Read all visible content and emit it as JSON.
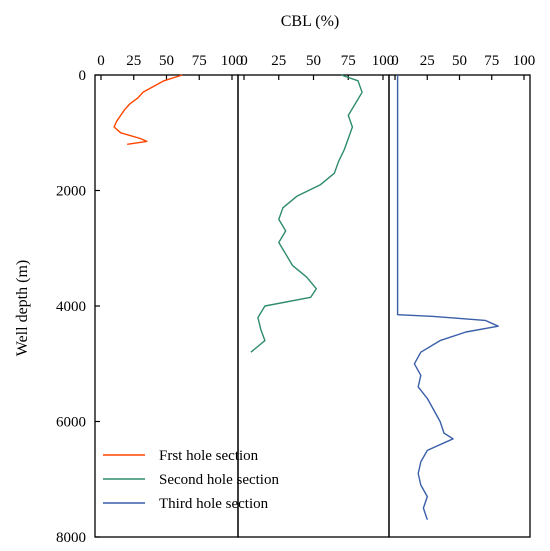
{
  "chart_data": {
    "type": "line",
    "title": "",
    "xlabel": "CBL (%)",
    "ylabel": "Well depth (m)",
    "x_ticks": [
      "0",
      "25",
      "50",
      "75",
      "100"
    ],
    "y_ticks": [
      "0",
      "2000",
      "4000",
      "6000",
      "8000"
    ],
    "xlim": [
      0,
      100
    ],
    "ylim": [
      8000,
      0
    ],
    "grid": false,
    "legend_position": "bottom-left",
    "panels": 3,
    "series": [
      {
        "name": "Frst hole section",
        "color": "#ff4500",
        "panel": 0,
        "points": [
          [
            62,
            0
          ],
          [
            48,
            100
          ],
          [
            40,
            200
          ],
          [
            32,
            300
          ],
          [
            28,
            400
          ],
          [
            22,
            500
          ],
          [
            18,
            600
          ],
          [
            15,
            700
          ],
          [
            12,
            800
          ],
          [
            10,
            900
          ],
          [
            15,
            1000
          ],
          [
            30,
            1100
          ],
          [
            35,
            1150
          ],
          [
            20,
            1200
          ]
        ]
      },
      {
        "name": "Second hole section",
        "color": "#2e8b6e",
        "panel": 1,
        "points": [
          [
            70,
            0
          ],
          [
            82,
            100
          ],
          [
            85,
            300
          ],
          [
            80,
            500
          ],
          [
            75,
            700
          ],
          [
            78,
            900
          ],
          [
            75,
            1100
          ],
          [
            72,
            1300
          ],
          [
            68,
            1500
          ],
          [
            65,
            1700
          ],
          [
            55,
            1900
          ],
          [
            38,
            2100
          ],
          [
            28,
            2300
          ],
          [
            25,
            2500
          ],
          [
            30,
            2700
          ],
          [
            25,
            2900
          ],
          [
            30,
            3100
          ],
          [
            35,
            3300
          ],
          [
            45,
            3500
          ],
          [
            52,
            3700
          ],
          [
            48,
            3850
          ],
          [
            15,
            4000
          ],
          [
            10,
            4200
          ],
          [
            12,
            4400
          ],
          [
            15,
            4600
          ],
          [
            5,
            4800
          ]
        ]
      },
      {
        "name": "Third hole section",
        "color": "#3a5fa8",
        "panel": 2,
        "points": [
          [
            2,
            0
          ],
          [
            2,
            4150
          ],
          [
            30,
            4180
          ],
          [
            70,
            4250
          ],
          [
            80,
            4350
          ],
          [
            55,
            4450
          ],
          [
            35,
            4600
          ],
          [
            20,
            4800
          ],
          [
            15,
            5000
          ],
          [
            20,
            5200
          ],
          [
            18,
            5400
          ],
          [
            25,
            5600
          ],
          [
            30,
            5800
          ],
          [
            35,
            6000
          ],
          [
            38,
            6200
          ],
          [
            45,
            6300
          ],
          [
            25,
            6500
          ],
          [
            20,
            6700
          ],
          [
            18,
            6900
          ],
          [
            20,
            7100
          ],
          [
            25,
            7300
          ],
          [
            22,
            7500
          ],
          [
            25,
            7700
          ]
        ]
      }
    ]
  }
}
